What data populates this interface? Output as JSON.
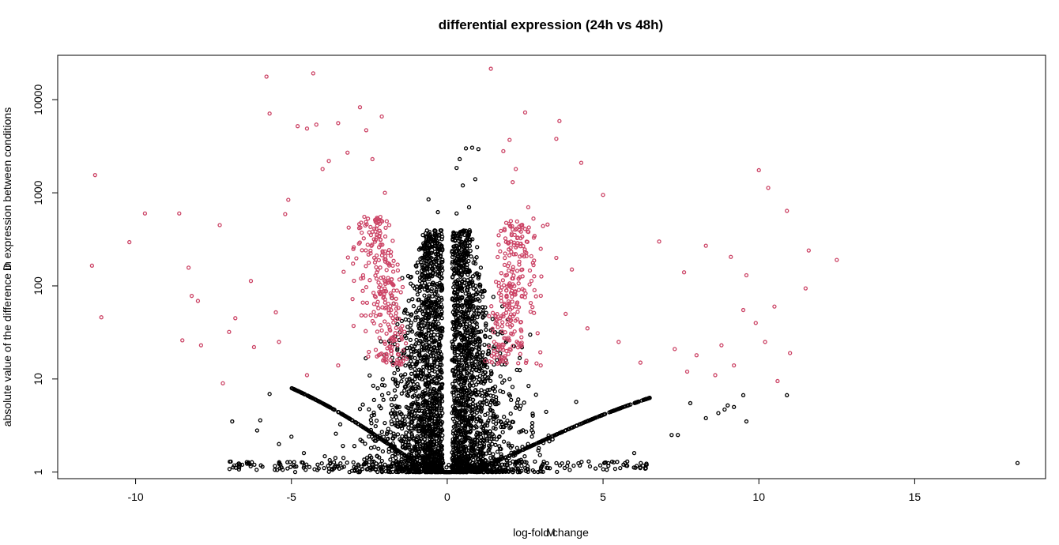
{
  "chart_data": {
    "type": "scatter",
    "title": "differential expression (24h vs 48h)",
    "xlabel": "log-fold change",
    "xlabel_overlap_char": "M",
    "ylabel": "absolute value of the difference in expression between conditions",
    "ylabel_overlap_char": "D",
    "y_scale": "log",
    "xlim": [
      -12.5,
      19.2
    ],
    "ylim": [
      0.85,
      30000
    ],
    "x_ticks": [
      -10,
      -5,
      0,
      5,
      10,
      15
    ],
    "y_ticks": [
      1,
      10,
      100,
      1000,
      10000
    ],
    "grid": false,
    "legend": "none",
    "series": [
      {
        "color": "#000000",
        "points": [
          [
            18.3,
            1.25
          ],
          [
            10.9,
            6.7
          ],
          [
            9.6,
            3.5
          ],
          [
            9.5,
            6.7
          ],
          [
            9.2,
            5.0
          ],
          [
            9.0,
            5.2
          ],
          [
            8.9,
            4.7
          ],
          [
            8.3,
            3.8
          ],
          [
            8.7,
            4.3
          ],
          [
            7.8,
            5.5
          ],
          [
            7.4,
            2.5
          ],
          [
            7.2,
            2.5
          ],
          [
            6.4,
            1.2
          ],
          [
            6.0,
            1.6
          ],
          [
            -6.1,
            2.8
          ],
          [
            -6.0,
            3.6
          ],
          [
            -5.7,
            6.9
          ],
          [
            -6.9,
            3.5
          ],
          [
            -5.4,
            2.0
          ],
          [
            -5.0,
            2.4
          ],
          [
            -4.6,
            1.6
          ],
          [
            0.3,
            1850
          ],
          [
            0.4,
            2300
          ],
          [
            0.6,
            3000
          ],
          [
            0.5,
            1200
          ],
          [
            0.8,
            3050
          ],
          [
            1.0,
            2950
          ],
          [
            0.7,
            700
          ],
          [
            0.9,
            1400
          ],
          [
            0.3,
            600
          ],
          [
            -0.6,
            850
          ],
          [
            -0.3,
            620
          ]
        ]
      },
      {
        "color": "#cc4466",
        "points": [
          [
            -11.4,
            165
          ],
          [
            -11.3,
            1550
          ],
          [
            -11.1,
            46
          ],
          [
            -10.2,
            295
          ],
          [
            -9.7,
            600
          ],
          [
            -8.6,
            600
          ],
          [
            -8.5,
            26
          ],
          [
            -8.3,
            157
          ],
          [
            -8.2,
            78
          ],
          [
            -8.0,
            69
          ],
          [
            -7.9,
            23
          ],
          [
            -7.3,
            450
          ],
          [
            -7.2,
            9.0
          ],
          [
            -7.0,
            32
          ],
          [
            -6.3,
            113
          ],
          [
            -5.8,
            17700
          ],
          [
            -5.7,
            7100
          ],
          [
            -5.5,
            52
          ],
          [
            -5.4,
            25
          ],
          [
            -5.2,
            590
          ],
          [
            -5.1,
            840
          ],
          [
            -4.8,
            5200
          ],
          [
            -4.5,
            4900
          ],
          [
            -4.3,
            19200
          ],
          [
            -4.2,
            5400
          ],
          [
            -4.0,
            1800
          ],
          [
            -3.8,
            2200
          ],
          [
            -3.5,
            5600
          ],
          [
            -3.2,
            2700
          ],
          [
            -2.8,
            8300
          ],
          [
            -2.6,
            4700
          ],
          [
            -2.4,
            2300
          ],
          [
            -2.1,
            6600
          ],
          [
            -2.0,
            1000
          ],
          [
            -3.0,
            260
          ],
          [
            -2.7,
            130
          ],
          [
            -1.8,
            55
          ],
          [
            -1.5,
            35
          ],
          [
            -2.2,
            18
          ],
          [
            -3.5,
            14
          ],
          [
            -4.5,
            11
          ],
          [
            -6.2,
            22
          ],
          [
            -6.8,
            45
          ],
          [
            1.4,
            21500
          ],
          [
            2.5,
            7300
          ],
          [
            3.6,
            5900
          ],
          [
            3.5,
            3800
          ],
          [
            4.3,
            2100
          ],
          [
            5.0,
            950
          ],
          [
            2.2,
            1800
          ],
          [
            2.0,
            3700
          ],
          [
            1.8,
            2800
          ],
          [
            2.1,
            1300
          ],
          [
            2.6,
            700
          ],
          [
            3.0,
            250
          ],
          [
            3.5,
            200
          ],
          [
            4.0,
            150
          ],
          [
            6.8,
            300
          ],
          [
            7.6,
            140
          ],
          [
            8.3,
            270
          ],
          [
            9.1,
            205
          ],
          [
            9.6,
            130
          ],
          [
            10.0,
            1750
          ],
          [
            10.3,
            1130
          ],
          [
            10.5,
            60
          ],
          [
            10.9,
            640
          ],
          [
            11.6,
            240
          ],
          [
            12.5,
            190
          ],
          [
            11.5,
            94
          ],
          [
            11.0,
            19
          ],
          [
            10.6,
            9.5
          ],
          [
            10.2,
            25
          ],
          [
            9.9,
            40
          ],
          [
            9.5,
            55
          ],
          [
            9.2,
            14
          ],
          [
            8.8,
            23
          ],
          [
            8.6,
            11
          ],
          [
            8.0,
            18
          ],
          [
            7.7,
            12
          ],
          [
            7.3,
            21
          ],
          [
            6.2,
            15
          ],
          [
            5.5,
            25
          ],
          [
            4.5,
            35
          ],
          [
            3.8,
            50
          ],
          [
            2.8,
            90
          ],
          [
            2.2,
            60
          ],
          [
            1.7,
            45
          ],
          [
            1.9,
            20
          ],
          [
            3.0,
            14
          ]
        ]
      }
    ]
  }
}
